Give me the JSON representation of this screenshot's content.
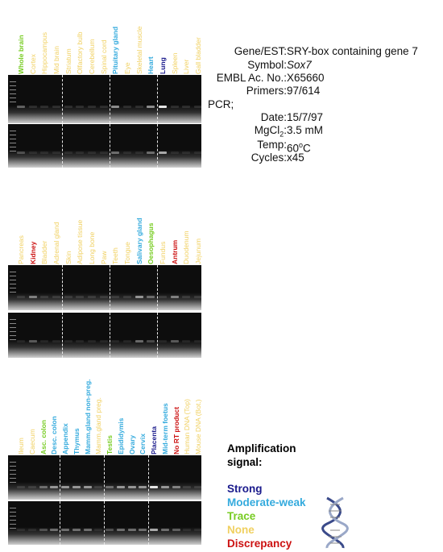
{
  "colors": {
    "strong": "#1a1a8c",
    "moderate_weak": "#33aadd",
    "trace": "#77cc22",
    "none": "#f0d060",
    "discrepancy": "#cc1111"
  },
  "panel1": {
    "lanes": [
      {
        "label": "Whole brain",
        "level": "trace"
      },
      {
        "label": "Cortex",
        "level": "none"
      },
      {
        "label": "Hippocampus",
        "level": "none"
      },
      {
        "label": "Mid brain",
        "level": "none"
      },
      {
        "label": "Striatum",
        "level": "none"
      },
      {
        "label": "Olfactory bulb",
        "level": "none"
      },
      {
        "label": "Cerebellum",
        "level": "none"
      },
      {
        "label": "Spinal cord",
        "level": "none"
      },
      {
        "label": "Pituitary gland",
        "level": "moderate_weak"
      },
      {
        "label": "Eye",
        "level": "none"
      },
      {
        "label": "Skeletal muscle",
        "level": "none"
      },
      {
        "label": "Heart",
        "level": "moderate_weak"
      },
      {
        "label": "Lung",
        "level": "strong"
      },
      {
        "label": "Spleen",
        "level": "none"
      },
      {
        "label": "Liver",
        "level": "none"
      },
      {
        "label": "Gall bladder",
        "level": "none"
      }
    ]
  },
  "panel2": {
    "lanes": [
      {
        "label": "Pancreas",
        "level": "none"
      },
      {
        "label": "Kidney",
        "level": "discrepancy"
      },
      {
        "label": "Bladder",
        "level": "none"
      },
      {
        "label": "Adrenal gland",
        "level": "none"
      },
      {
        "label": "Skin",
        "level": "none"
      },
      {
        "label": "Adipose tissue",
        "level": "none"
      },
      {
        "label": "Long bone",
        "level": "none"
      },
      {
        "label": "Paw",
        "level": "none"
      },
      {
        "label": "Teeth",
        "level": "none"
      },
      {
        "label": "Tongue",
        "level": "none"
      },
      {
        "label": "Salivary gland",
        "level": "moderate_weak"
      },
      {
        "label": "Oesophagus",
        "level": "trace"
      },
      {
        "label": "Fundus",
        "level": "none"
      },
      {
        "label": "Antrum",
        "level": "discrepancy"
      },
      {
        "label": "Duodenum",
        "level": "none"
      },
      {
        "label": "Jejunum",
        "level": "none"
      }
    ]
  },
  "panel3": {
    "lanes": [
      {
        "label": "Ileum",
        "level": "none"
      },
      {
        "label": "Caecum",
        "level": "none"
      },
      {
        "label": "Asc. colon",
        "level": "trace"
      },
      {
        "label": "Desc. colon",
        "level": "moderate_weak"
      },
      {
        "label": "Appendix",
        "level": "moderate_weak"
      },
      {
        "label": "Thymus",
        "level": "moderate_weak"
      },
      {
        "label": "Mamm.gland non-preg.",
        "level": "moderate_weak"
      },
      {
        "label": "Mamm.gland preg.",
        "level": "none"
      },
      {
        "label": "Testis",
        "level": "trace"
      },
      {
        "label": "Epididymis",
        "level": "moderate_weak"
      },
      {
        "label": "Ovary",
        "level": "moderate_weak"
      },
      {
        "label": "Cervix",
        "level": "moderate_weak"
      },
      {
        "label": "Placenta",
        "level": "strong"
      },
      {
        "label": "Mid-term foetus",
        "level": "moderate_weak"
      },
      {
        "label": "No RT product",
        "level": "discrepancy"
      },
      {
        "label": "Human DNA (Top)",
        "level": "none"
      },
      {
        "label": "Mouse DNA (Bot.)",
        "level": "none"
      }
    ]
  },
  "info": {
    "gene_key": "Gene/EST:",
    "gene_val": "SRY-box containing gene 7",
    "symbol_key": "Symbol:",
    "symbol_val": "Sox7",
    "embl_key": "EMBL Ac. No.:",
    "embl_val": "X65660",
    "primers_key": "Primers:",
    "primers_val": "97/614",
    "pcr_key": "PCR;",
    "date_key": "Date:",
    "date_val": "15/7/97",
    "mgcl_key_a": "MgCl",
    "mgcl_key_sub": "2",
    "mgcl_key_b": ":",
    "mgcl_val": "3.5 mM",
    "temp_key": "Temp:",
    "temp_val_a": "60",
    "temp_val_sup": "o",
    "temp_val_b": "C",
    "cycles_key": "Cycles:",
    "cycles_val": "x45"
  },
  "legend": {
    "title_line1": "Amplification",
    "title_line2": "signal:",
    "items": [
      {
        "label": "Strong",
        "level": "strong"
      },
      {
        "label": "Moderate-weak",
        "level": "moderate_weak"
      },
      {
        "label": "Trace",
        "level": "trace"
      },
      {
        "label": "None",
        "level": "none"
      },
      {
        "label": "Discrepancy",
        "level": "discrepancy"
      }
    ]
  }
}
